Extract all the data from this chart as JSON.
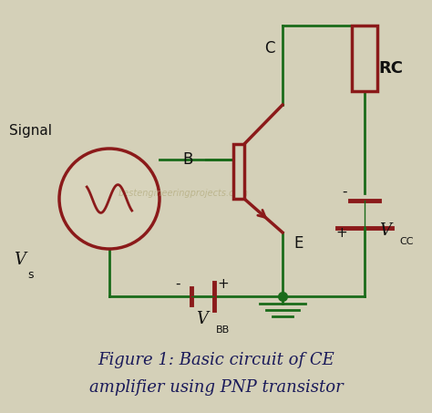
{
  "bg_color": "#d4d0b8",
  "wire_color": "#1a6b1a",
  "component_color": "#8b1a1a",
  "text_color": "#111111",
  "watermark": "bestengineeringprojects.com",
  "title_line1": "Figure 1: Basic circuit of CE",
  "title_line2": "amplifier using PNP transistor",
  "label_signal": "Signal",
  "label_vs": "V",
  "label_vs_sub": "s",
  "label_b": "B",
  "label_c": "C",
  "label_e": "E",
  "label_rc": "RC",
  "label_vcc": "V",
  "label_vcc_sub": "CC",
  "label_vbb": "V",
  "label_vbb_sub": "BB",
  "label_minus_vbb": "-",
  "label_plus_vbb": "+",
  "label_minus_vcc": "-",
  "label_plus_vcc": "+"
}
